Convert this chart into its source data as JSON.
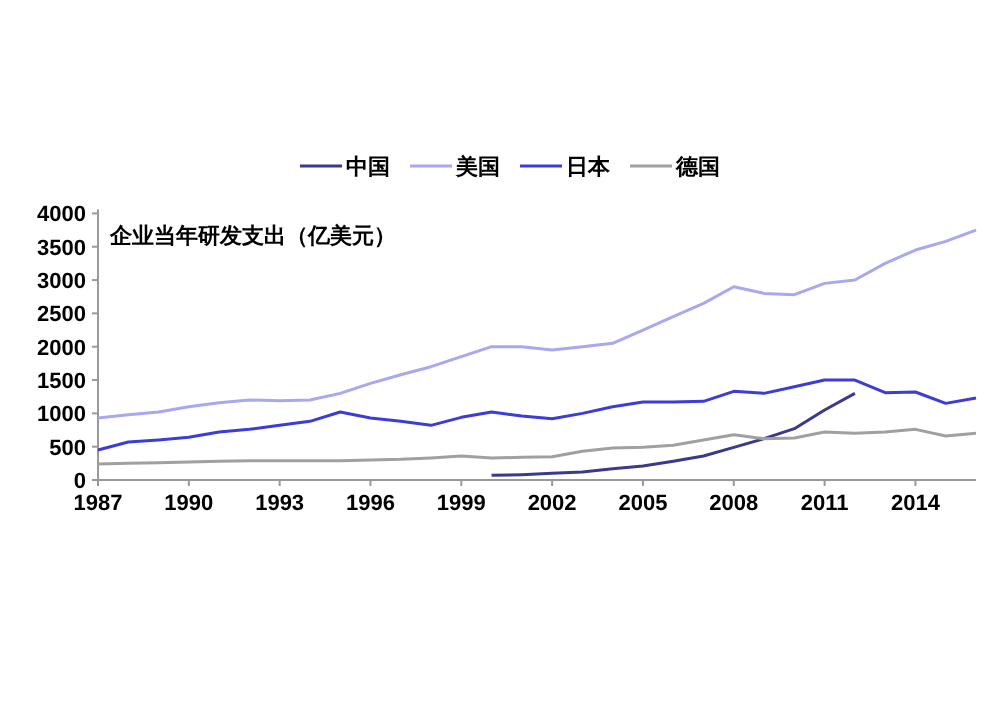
{
  "chart_data": {
    "type": "line",
    "annotations": [
      "企业当年研发支出（亿美元）"
    ],
    "x": [
      1987,
      1988,
      1989,
      1990,
      1991,
      1992,
      1993,
      1994,
      1995,
      1996,
      1997,
      1998,
      1999,
      2000,
      2001,
      2002,
      2003,
      2004,
      2005,
      2006,
      2007,
      2008,
      2009,
      2010,
      2011,
      2012,
      2013,
      2014,
      2015,
      2016
    ],
    "series": [
      {
        "name": "中国",
        "color": "#3a3a8c",
        "values": [
          null,
          null,
          null,
          null,
          null,
          null,
          null,
          null,
          null,
          null,
          null,
          null,
          null,
          70,
          80,
          100,
          120,
          170,
          210,
          280,
          360,
          490,
          620,
          770,
          1050,
          1300,
          null,
          null,
          null,
          null
        ]
      },
      {
        "name": "美国",
        "color": "#a8a8f0",
        "values": [
          930,
          980,
          1020,
          1100,
          1160,
          1200,
          1190,
          1200,
          1300,
          1450,
          1580,
          1700,
          1850,
          2000,
          2000,
          1950,
          2000,
          2050,
          2250,
          2450,
          2650,
          2900,
          2800,
          2780,
          2950,
          3000,
          3250,
          3450,
          3580,
          3750
        ]
      },
      {
        "name": "日本",
        "color": "#3c3cd8",
        "values": [
          450,
          570,
          600,
          640,
          720,
          760,
          820,
          880,
          1020,
          930,
          880,
          820,
          940,
          1020,
          960,
          920,
          1000,
          1100,
          1170,
          1170,
          1180,
          1330,
          1300,
          1400,
          1500,
          1500,
          1310,
          1320,
          1150,
          1230
        ]
      },
      {
        "name": "德国",
        "color": "#a0a0a0",
        "values": [
          240,
          250,
          260,
          270,
          280,
          290,
          290,
          290,
          290,
          300,
          310,
          330,
          360,
          330,
          340,
          350,
          430,
          480,
          490,
          520,
          600,
          680,
          620,
          630,
          720,
          700,
          720,
          760,
          660,
          700
        ]
      }
    ],
    "xlim": [
      1987,
      2016
    ],
    "xticks": [
      1987,
      1990,
      1993,
      1996,
      1999,
      2002,
      2005,
      2008,
      2011,
      2014
    ],
    "ylim": [
      0,
      4000
    ],
    "yticks": [
      0,
      500,
      1000,
      1500,
      2000,
      2500,
      3000,
      3500,
      4000
    ],
    "grid": false,
    "legend": "top",
    "marker": "none",
    "line_style": "solid"
  }
}
